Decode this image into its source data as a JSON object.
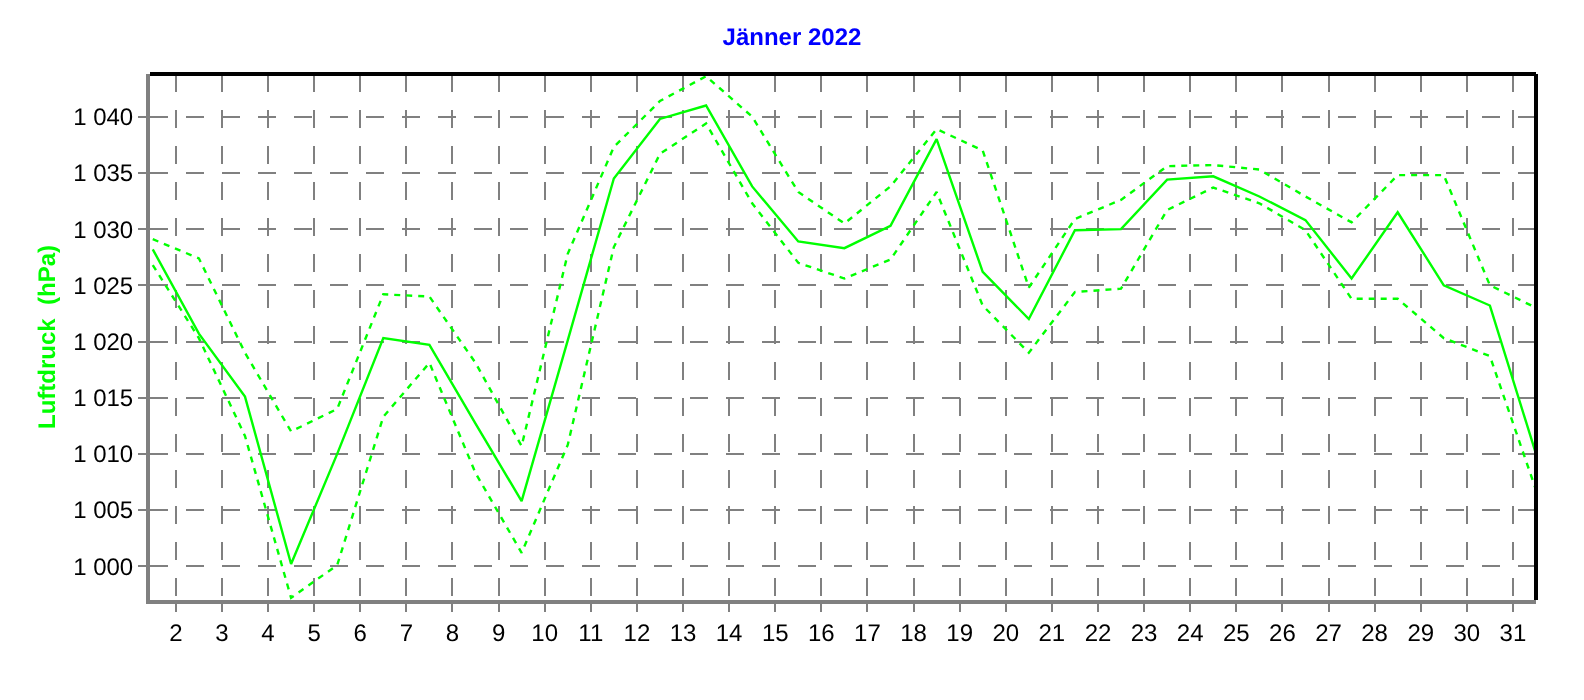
{
  "chart_data": {
    "type": "line",
    "title": "Jänner 2022",
    "ylabel": "Luftdruck  (hPa)",
    "x": [
      1.5,
      2.5,
      3.5,
      4.5,
      5.5,
      6.5,
      7.5,
      8.5,
      9.5,
      10.5,
      11.5,
      12.5,
      13.5,
      14.5,
      15.5,
      16.5,
      17.5,
      18.5,
      19.5,
      20.5,
      21.5,
      22.5,
      23.5,
      24.5,
      25.5,
      26.5,
      27.5,
      28.5,
      29.5,
      30.5,
      31.5
    ],
    "series": [
      {
        "color": "#00ff00",
        "line_style": "dotted",
        "values": [
          1029.1,
          1027.4,
          1019.0,
          1012.0,
          1014.0,
          1024.2,
          1024.0,
          1018.1,
          1010.7,
          1027.8,
          1037.3,
          1041.4,
          1043.6,
          1040.0,
          1033.3,
          1030.5,
          1033.8,
          1038.9,
          1037.0,
          1024.8,
          1030.9,
          1032.6,
          1035.6,
          1035.7,
          1035.3,
          1032.9,
          1030.6,
          1034.8,
          1034.8,
          1025.0,
          1023.0
        ]
      },
      {
        "color": "#00ff00",
        "line_style": "solid",
        "values": [
          1028.2,
          1020.7,
          1015.1,
          1000.2,
          1010.0,
          1020.3,
          1019.7,
          1012.7,
          1005.8,
          1020.1,
          1034.5,
          1039.8,
          1041.0,
          1033.8,
          1028.9,
          1028.3,
          1030.3,
          1038.0,
          1026.2,
          1022.0,
          1029.9,
          1030.0,
          1034.4,
          1034.7,
          1032.9,
          1030.8,
          1025.6,
          1031.5,
          1025.0,
          1023.2,
          1010.0
        ]
      },
      {
        "color": "#00ff00",
        "line_style": "dotted",
        "values": [
          1026.8,
          1020.3,
          1011.6,
          997.2,
          1000.1,
          1013.3,
          1018.1,
          1008.3,
          1001.2,
          1010.8,
          1028.4,
          1036.7,
          1039.4,
          1032.3,
          1027.0,
          1025.6,
          1027.3,
          1033.3,
          1023.2,
          1019.0,
          1024.4,
          1024.7,
          1031.7,
          1033.7,
          1032.3,
          1029.9,
          1023.8,
          1023.8,
          1020.3,
          1018.7,
          1006.8
        ]
      }
    ],
    "xlim": [
      1.44,
      31.5
    ],
    "xticks": [
      2,
      3,
      4,
      5,
      6,
      7,
      8,
      9,
      10,
      11,
      12,
      13,
      14,
      15,
      16,
      17,
      18,
      19,
      20,
      21,
      22,
      23,
      24,
      25,
      26,
      27,
      28,
      29,
      30,
      31
    ],
    "ylim": [
      997.0,
      1043.8
    ],
    "yticks": [
      {
        "value": 1000,
        "label": "1 000"
      },
      {
        "value": 1005,
        "label": "1 005"
      },
      {
        "value": 1010,
        "label": "1 010"
      },
      {
        "value": 1015,
        "label": "1 015"
      },
      {
        "value": 1020,
        "label": "1 020"
      },
      {
        "value": 1025,
        "label": "1 025"
      },
      {
        "value": 1030,
        "label": "1 030"
      },
      {
        "value": 1035,
        "label": "1 035"
      },
      {
        "value": 1040,
        "label": "1 040"
      }
    ],
    "grid": true,
    "marker": "none"
  }
}
